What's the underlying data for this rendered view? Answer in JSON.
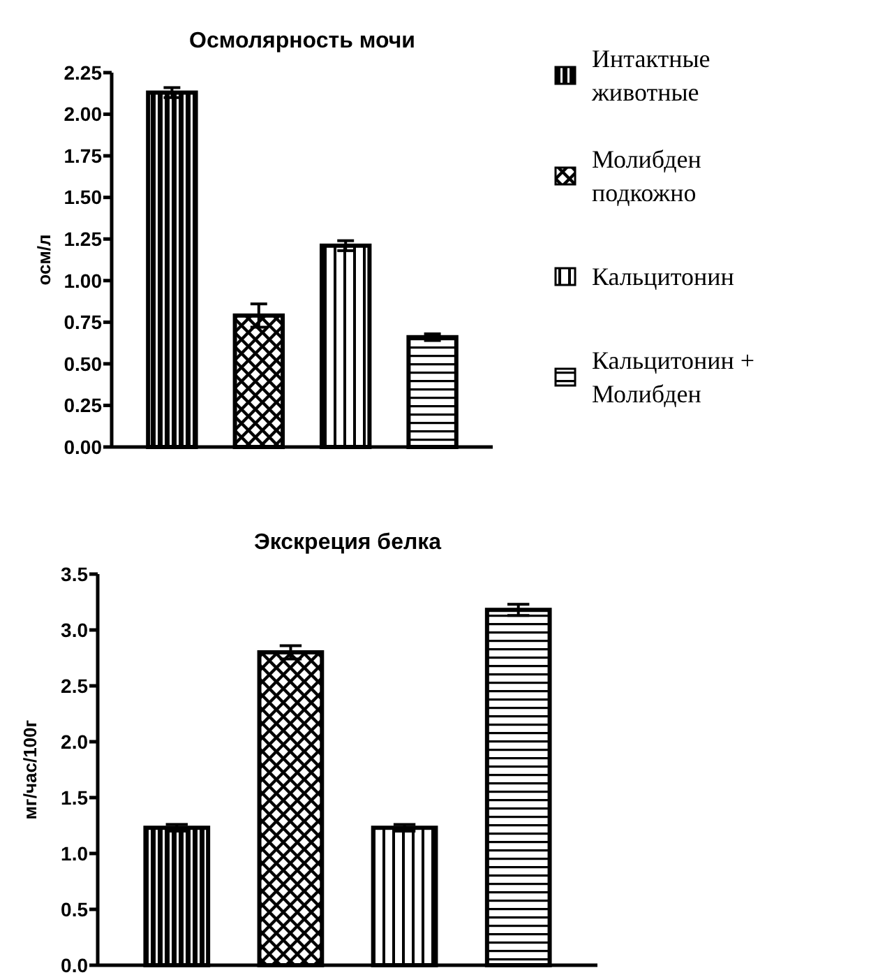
{
  "chart_data": [
    {
      "type": "bar",
      "title": "Осмолярность мочи",
      "ylabel": "осм/л",
      "categories": [
        null
      ],
      "ylim": [
        0,
        2.25
      ],
      "yticks": [
        {
          "value": 0,
          "label": "0.00"
        },
        {
          "value": 0.25,
          "label": "0.25"
        },
        {
          "value": 0.5,
          "label": "0.50"
        },
        {
          "value": 0.75,
          "label": "0.75"
        },
        {
          "value": 1,
          "label": "1.00"
        },
        {
          "value": 1.25,
          "label": "1.25"
        },
        {
          "value": 1.5,
          "label": "1.50"
        },
        {
          "value": 1.75,
          "label": "1.75"
        },
        {
          "value": 2,
          "label": "2.00"
        },
        {
          "value": 2.25,
          "label": "2.25"
        }
      ],
      "legend": "right",
      "series": [
        {
          "name": "Интактные животные",
          "color": "#000000",
          "values": [
            2.13
          ],
          "errors": [
            0.03
          ]
        },
        {
          "name": "Молибден подкожно",
          "color": "#000000",
          "values": [
            0.79
          ],
          "errors": [
            0.07
          ]
        },
        {
          "name": "Кальцитонин",
          "color": "#000000",
          "values": [
            1.21
          ],
          "errors": [
            0.03
          ]
        },
        {
          "name": "Кальцитонин + Молибден",
          "color": "#000000",
          "values": [
            0.66
          ],
          "errors": [
            0.02
          ]
        }
      ]
    },
    {
      "type": "bar",
      "title": "Экскреция белка",
      "ylabel": "мг/час/100г",
      "categories": [
        null
      ],
      "ylim": [
        0,
        3.5
      ],
      "yticks": [
        {
          "value": 0,
          "label": "0.0"
        },
        {
          "value": 0.5,
          "label": "0.5"
        },
        {
          "value": 1,
          "label": "1.0"
        },
        {
          "value": 1.5,
          "label": "1.5"
        },
        {
          "value": 2,
          "label": "2.0"
        },
        {
          "value": 2.5,
          "label": "2.5"
        },
        {
          "value": 3,
          "label": "3.0"
        },
        {
          "value": 3.5,
          "label": "3.5"
        }
      ],
      "series": [
        {
          "color": "#000000",
          "values": [
            1.23
          ],
          "errors": [
            0.03
          ]
        },
        {
          "color": "#000000",
          "values": [
            2.8
          ],
          "errors": [
            0.06
          ]
        },
        {
          "color": "#000000",
          "values": [
            1.23
          ],
          "errors": [
            0.03
          ]
        },
        {
          "color": "#000000",
          "values": [
            3.18
          ],
          "errors": [
            0.05
          ]
        }
      ]
    }
  ]
}
